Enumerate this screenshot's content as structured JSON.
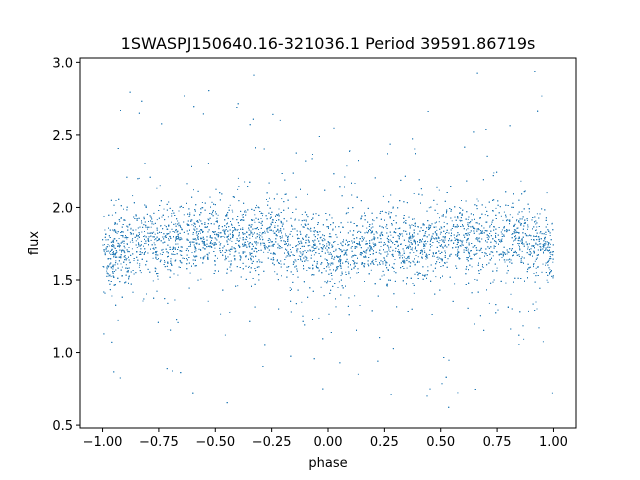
{
  "chart_data": {
    "type": "scatter",
    "title": "1SWASPJ150640.16-321036.1 Period 39591.86719s",
    "xlabel": "phase",
    "ylabel": "flux",
    "xlim": [
      -1.1,
      1.1
    ],
    "ylim": [
      0.48,
      3.03
    ],
    "x_ticks": [
      -1.0,
      -0.75,
      -0.5,
      -0.25,
      0.0,
      0.25,
      0.5,
      0.75,
      1.0
    ],
    "x_tick_labels": [
      "−1.00",
      "−0.75",
      "−0.50",
      "−0.25",
      "0.00",
      "0.25",
      "0.50",
      "0.75",
      "1.00"
    ],
    "y_ticks": [
      0.5,
      1.0,
      1.5,
      2.0,
      2.5,
      3.0
    ],
    "y_tick_labels": [
      "0.5",
      "1.0",
      "1.5",
      "2.0",
      "2.5",
      "3.0"
    ],
    "grid": false,
    "marker_color": "#1f77b4",
    "series": [
      {
        "phase_range": [
          -1.0,
          1.0
        ],
        "profile_phase": [
          -1.0,
          -0.75,
          -0.5,
          -0.25,
          -0.1,
          0.0,
          0.1,
          0.25,
          0.5,
          0.75,
          0.9,
          1.0
        ],
        "profile_median_flux": [
          1.68,
          1.79,
          1.8,
          1.79,
          1.73,
          1.66,
          1.7,
          1.75,
          1.76,
          1.79,
          1.77,
          1.68
        ],
        "core_spread": 0.22,
        "flux_range": [
          0.6,
          2.95
        ]
      }
    ]
  }
}
